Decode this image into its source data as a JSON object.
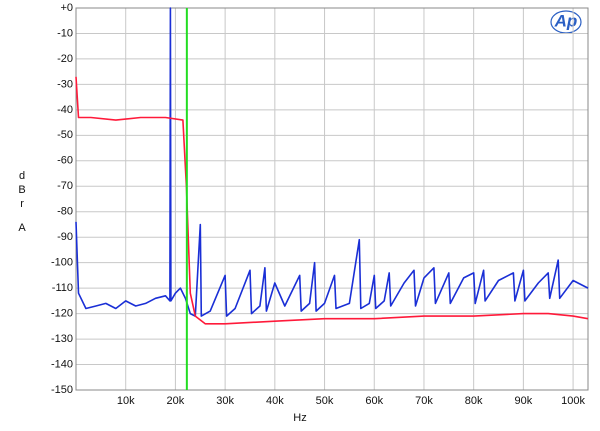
{
  "chart_data": {
    "type": "line",
    "logo": "Ap",
    "xlabel": "Hz",
    "ylabel": "dBr",
    "ylabel_unit": "A",
    "xlim": [
      0,
      103000
    ],
    "ylim": [
      -150,
      0
    ],
    "xticks": [
      {
        "value": 10000,
        "label": "10k"
      },
      {
        "value": 20000,
        "label": "20k"
      },
      {
        "value": 30000,
        "label": "30k"
      },
      {
        "value": 40000,
        "label": "40k"
      },
      {
        "value": 50000,
        "label": "50k"
      },
      {
        "value": 60000,
        "label": "60k"
      },
      {
        "value": 70000,
        "label": "70k"
      },
      {
        "value": 80000,
        "label": "80k"
      },
      {
        "value": 90000,
        "label": "90k"
      },
      {
        "value": 100000,
        "label": "100k"
      }
    ],
    "yticks": [
      {
        "value": 0,
        "label": "+0"
      },
      -10,
      -20,
      -30,
      -40,
      -50,
      -60,
      -70,
      -80,
      -90,
      -100,
      -110,
      -120,
      -130,
      -140,
      -150
    ],
    "grid": true,
    "markers": [
      {
        "x": 22300,
        "color": "#22dd22"
      }
    ],
    "series": [
      {
        "color": "#1a2fd6",
        "x": [
          0,
          500,
          2000,
          4000,
          6000,
          8000,
          10000,
          12000,
          14000,
          16000,
          18000,
          18900,
          19000,
          19100,
          20000,
          21000,
          22000,
          23000,
          24000,
          25000,
          25200,
          27000,
          30000,
          30300,
          32000,
          35000,
          35300,
          37000,
          38000,
          38300,
          40000,
          42000,
          45000,
          45300,
          47000,
          48000,
          48300,
          50000,
          52000,
          52300,
          55000,
          57000,
          57300,
          59000,
          60000,
          60300,
          62000,
          63000,
          63300,
          66000,
          68000,
          68300,
          70000,
          72000,
          72300,
          75000,
          75300,
          78000,
          80000,
          80300,
          82000,
          82300,
          85000,
          88000,
          88300,
          90000,
          90300,
          93000,
          95000,
          95300,
          97000,
          97300,
          100000,
          103000
        ],
        "values": [
          -84,
          -112,
          -118,
          -117,
          -116,
          -118,
          -115,
          -117,
          -116,
          -114,
          -113,
          -115,
          0,
          -115,
          -112,
          -110,
          -114,
          -120,
          -121,
          -85,
          -121,
          -119,
          -105,
          -121,
          -118,
          -103,
          -120,
          -117,
          -102,
          -119,
          -108,
          -117,
          -105,
          -119,
          -116,
          -100,
          -119,
          -116,
          -105,
          -118,
          -116,
          -91,
          -118,
          -116,
          -105,
          -118,
          -115,
          -104,
          -117,
          -108,
          -103,
          -117,
          -106,
          -102,
          -116,
          -104,
          -116,
          -106,
          -104,
          -116,
          -103,
          -115,
          -107,
          -104,
          -115,
          -103,
          -115,
          -108,
          -104,
          -114,
          -99,
          -114,
          -107,
          -110
        ]
      },
      {
        "color": "#ff1a3a",
        "x": [
          0,
          500,
          3000,
          8000,
          13000,
          18000,
          21500,
          22200,
          23000,
          24000,
          26000,
          30000,
          40000,
          50000,
          60000,
          70000,
          80000,
          90000,
          95000,
          100000,
          103000
        ],
        "values": [
          -27,
          -43,
          -43,
          -44,
          -43,
          -43,
          -44,
          -70,
          -112,
          -121,
          -124,
          -124,
          -123,
          -122,
          -122,
          -121,
          -121,
          -120,
          -120,
          -121,
          -122
        ]
      }
    ]
  }
}
